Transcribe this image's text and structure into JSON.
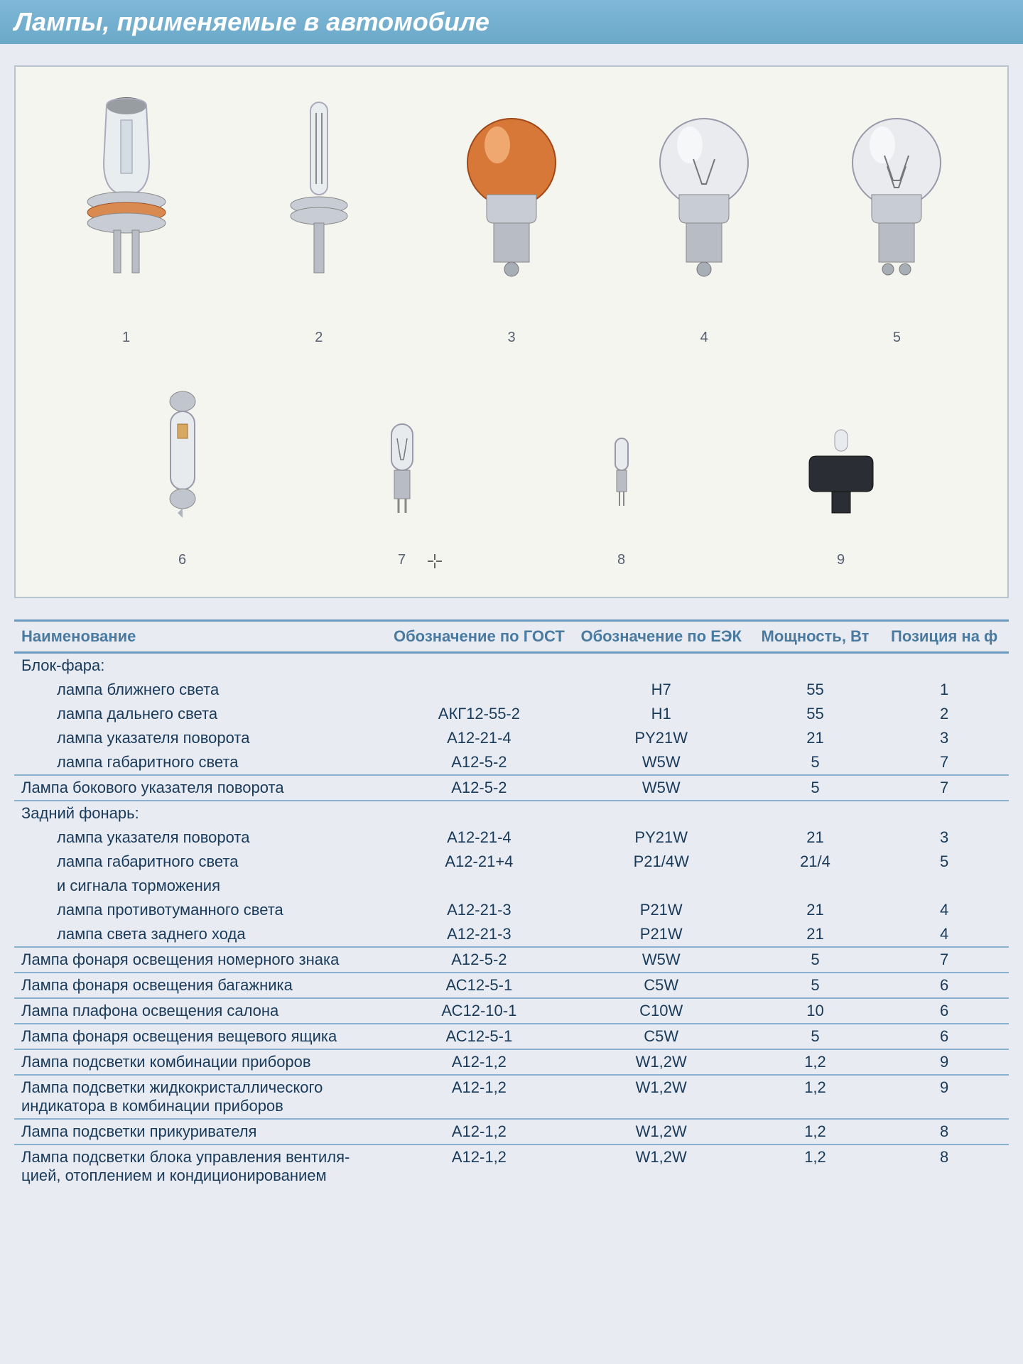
{
  "title": "Лампы, применяемые в автомобиле",
  "gallery": {
    "row1": [
      {
        "label": "1"
      },
      {
        "label": "2"
      },
      {
        "label": "3"
      },
      {
        "label": "4"
      },
      {
        "label": "5"
      }
    ],
    "row2": [
      {
        "label": "6"
      },
      {
        "label": "7"
      },
      {
        "label": "8"
      },
      {
        "label": "9"
      }
    ]
  },
  "table": {
    "headers": [
      "Наименование",
      "Обозначение по ГОСТ",
      "Обозначение по ЕЭК",
      "Мощность, Вт",
      "Позиция на ф"
    ],
    "rows": [
      {
        "type": "section",
        "cells": [
          "Блок-фара:",
          "",
          "",
          "",
          ""
        ]
      },
      {
        "type": "sub",
        "cells": [
          "лампа ближнего света",
          "",
          "H7",
          "55",
          "1"
        ]
      },
      {
        "type": "sub",
        "cells": [
          "лампа дальнего света",
          "АКГ12-55-2",
          "H1",
          "55",
          "2"
        ]
      },
      {
        "type": "sub",
        "cells": [
          "лампа указателя поворота",
          "А12-21-4",
          "PY21W",
          "21",
          "3"
        ]
      },
      {
        "type": "sub",
        "cells": [
          "лампа габаритного света",
          "А12-5-2",
          "W5W",
          "5",
          "7"
        ]
      },
      {
        "type": "section",
        "cells": [
          "Лампа бокового указателя поворота",
          "А12-5-2",
          "W5W",
          "5",
          "7"
        ]
      },
      {
        "type": "section",
        "cells": [
          "Задний фонарь:",
          "",
          "",
          "",
          ""
        ]
      },
      {
        "type": "sub",
        "cells": [
          "лампа указателя поворота",
          "А12-21-4",
          "PY21W",
          "21",
          "3"
        ]
      },
      {
        "type": "sub",
        "cells": [
          "лампа габаритного света",
          "А12-21+4",
          "P21/4W",
          "21/4",
          "5"
        ]
      },
      {
        "type": "sub",
        "cells": [
          "и сигнала торможения",
          "",
          "",
          "",
          ""
        ]
      },
      {
        "type": "sub",
        "cells": [
          "лампа противотуманного света",
          "А12-21-3",
          "P21W",
          "21",
          "4"
        ]
      },
      {
        "type": "sub",
        "cells": [
          "лампа света заднего хода",
          "А12-21-3",
          "P21W",
          "21",
          "4"
        ]
      },
      {
        "type": "section",
        "cells": [
          "Лампа фонаря освещения номерного знака",
          "А12-5-2",
          "W5W",
          "5",
          "7"
        ]
      },
      {
        "type": "section",
        "cells": [
          "Лампа фонаря освещения багажника",
          "АС12-5-1",
          "C5W",
          "5",
          "6"
        ]
      },
      {
        "type": "section",
        "cells": [
          "Лампа плафона освещения салона",
          "АС12-10-1",
          "C10W",
          "10",
          "6"
        ]
      },
      {
        "type": "section",
        "cells": [
          "Лампа фонаря освещения вещевого ящика",
          "АС12-5-1",
          "C5W",
          "5",
          "6"
        ]
      },
      {
        "type": "section",
        "cells": [
          "Лампа подсветки комбинации приборов",
          "А12-1,2",
          "W1,2W",
          "1,2",
          "9"
        ]
      },
      {
        "type": "section",
        "cells": [
          "Лампа подсветки жидкокристаллического индикатора в комбинации приборов",
          "А12-1,2",
          "W1,2W",
          "1,2",
          "9"
        ]
      },
      {
        "type": "section",
        "cells": [
          "Лампа подсветки прикуривателя",
          "А12-1,2",
          "W1,2W",
          "1,2",
          "8"
        ]
      },
      {
        "type": "section",
        "cells": [
          "Лампа подсветки блока управления вентиля-цией, отоплением и кондиционированием",
          "А12-1,2",
          "W1,2W",
          "1,2",
          "8"
        ]
      }
    ]
  },
  "colors": {
    "header_bg": "#7fb8d8",
    "header_text": "#4a7aa0",
    "rule": "#6a9ac0",
    "body_text": "#1a3a5a",
    "gallery_bg": "#f5f5f0"
  }
}
